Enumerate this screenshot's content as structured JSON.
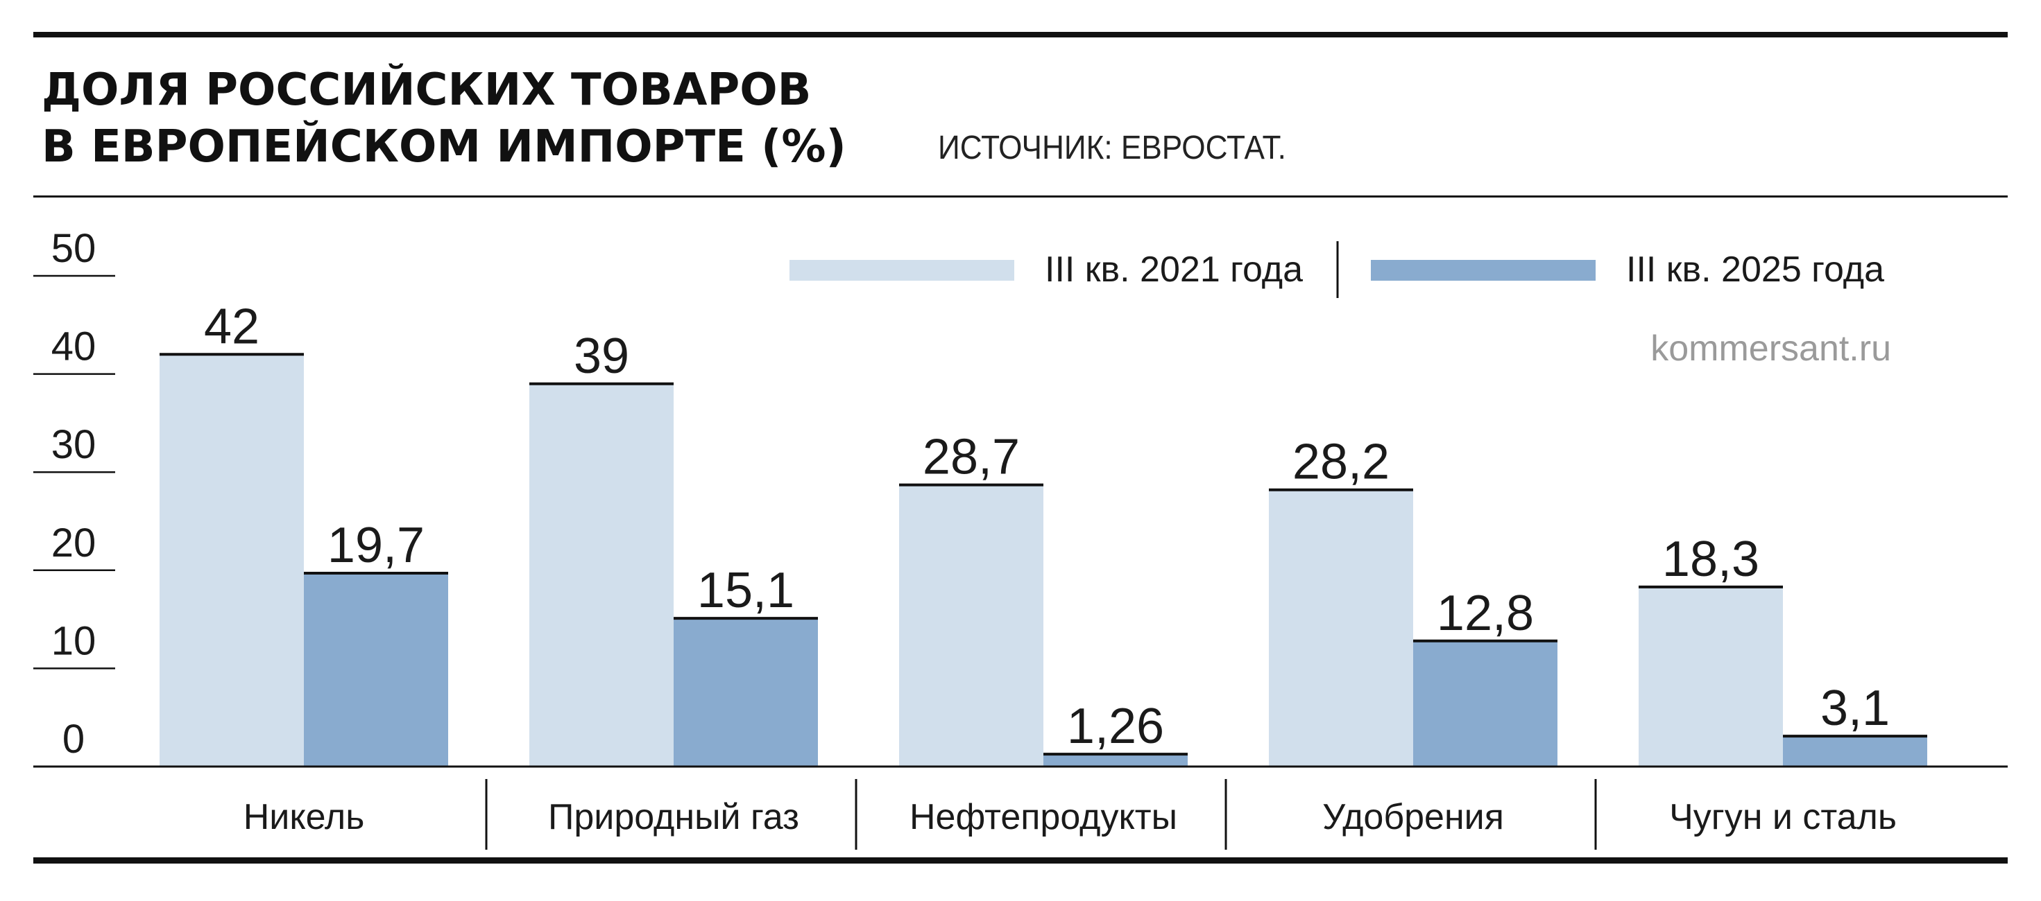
{
  "title_line1": "ДОЛЯ РОССИЙСКИХ ТОВАРОВ",
  "title_line2": "В ЕВРОПЕЙСКОМ ИМПОРТЕ (%)",
  "source": "ИСТОЧНИК: ЕВРОСТАТ.",
  "watermark": "kommersant.ru",
  "colors": {
    "series1": "#d1dfec",
    "series2": "#89abcf",
    "ink": "#111111",
    "watermark": "#9a9a9a"
  },
  "chart_data": {
    "type": "bar",
    "title": "ДОЛЯ РОССИЙСКИХ ТОВАРОВ В ЕВРОПЕЙСКОМ ИМПОРТЕ (%)",
    "categories": [
      "Никель",
      "Природный газ",
      "Нефтепродукты",
      "Удобрения",
      "Чугун и сталь"
    ],
    "series": [
      {
        "name": "III кв. 2021 года",
        "values": [
          42,
          39,
          28.7,
          28.2,
          18.3
        ],
        "labels": [
          "42",
          "39",
          "28,7",
          "28,2",
          "18,3"
        ]
      },
      {
        "name": "III кв. 2025 года",
        "values": [
          19.7,
          15.1,
          1.26,
          12.8,
          3.1
        ],
        "labels": [
          "19,7",
          "15,1",
          "1,26",
          "12,8",
          "3,1"
        ]
      }
    ],
    "yticks": [
      "0",
      "10",
      "20",
      "30",
      "40",
      "50"
    ],
    "ylim": [
      0,
      50
    ],
    "legend_position": "top-right",
    "grid": false
  }
}
